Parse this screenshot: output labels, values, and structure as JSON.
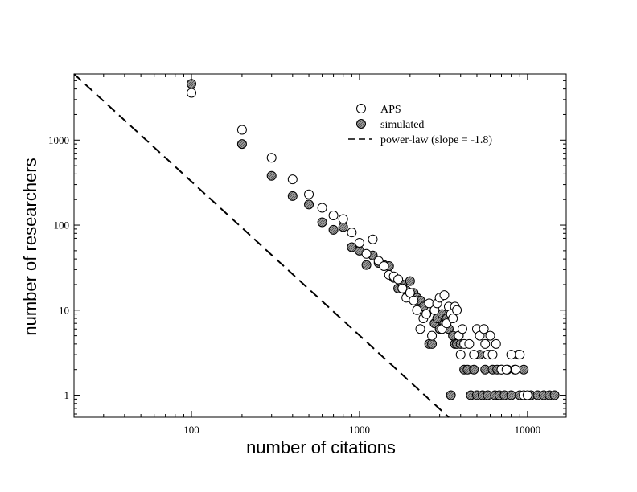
{
  "chart_data": {
    "type": "scatter",
    "xlabel": "number of citations",
    "ylabel": "number of researchers",
    "xscale": "log",
    "yscale": "log",
    "xlim": [
      20,
      17000
    ],
    "ylim": [
      0.55,
      6000
    ],
    "xticks": [
      100,
      1000,
      10000
    ],
    "xtick_labels": [
      "100",
      "1000",
      "10000"
    ],
    "yticks": [
      1,
      10,
      100,
      1000
    ],
    "ytick_labels": [
      "1",
      "10",
      "100",
      "1000"
    ],
    "legend_position": "top-right",
    "grid": false,
    "series": [
      {
        "name": "APS",
        "marker": "open-circle",
        "points": [
          [
            100,
            3600
          ],
          [
            200,
            1320
          ],
          [
            300,
            620
          ],
          [
            400,
            345
          ],
          [
            500,
            230
          ],
          [
            600,
            160
          ],
          [
            700,
            130
          ],
          [
            800,
            118
          ],
          [
            900,
            82
          ],
          [
            1000,
            62
          ],
          [
            1100,
            46
          ],
          [
            1200,
            68
          ],
          [
            1300,
            38
          ],
          [
            1400,
            33
          ],
          [
            1500,
            26
          ],
          [
            1600,
            25
          ],
          [
            1700,
            23
          ],
          [
            1800,
            18
          ],
          [
            1900,
            14
          ],
          [
            2000,
            16
          ],
          [
            2100,
            13
          ],
          [
            2200,
            10
          ],
          [
            2300,
            6
          ],
          [
            2400,
            8
          ],
          [
            2500,
            9
          ],
          [
            2600,
            12
          ],
          [
            2700,
            5
          ],
          [
            2800,
            10
          ],
          [
            2900,
            12
          ],
          [
            3000,
            14
          ],
          [
            3100,
            6
          ],
          [
            3200,
            15
          ],
          [
            3300,
            7
          ],
          [
            3400,
            11
          ],
          [
            3500,
            9
          ],
          [
            3600,
            8
          ],
          [
            3700,
            11
          ],
          [
            3800,
            10
          ],
          [
            3900,
            5
          ],
          [
            4000,
            3
          ],
          [
            4100,
            6
          ],
          [
            4200,
            4
          ],
          [
            4500,
            4
          ],
          [
            4800,
            3
          ],
          [
            5000,
            6
          ],
          [
            5200,
            5
          ],
          [
            5500,
            6
          ],
          [
            5600,
            4
          ],
          [
            5800,
            3
          ],
          [
            6000,
            5
          ],
          [
            6200,
            3
          ],
          [
            6500,
            4
          ],
          [
            7000,
            2
          ],
          [
            7500,
            2
          ],
          [
            8000,
            3
          ],
          [
            8500,
            2
          ],
          [
            9000,
            3
          ],
          [
            9500,
            1
          ],
          [
            10000,
            1
          ]
        ]
      },
      {
        "name": "simulated",
        "marker": "filled-circle",
        "points": [
          [
            100,
            4600
          ],
          [
            200,
            900
          ],
          [
            300,
            380
          ],
          [
            400,
            220
          ],
          [
            500,
            175
          ],
          [
            600,
            108
          ],
          [
            700,
            88
          ],
          [
            800,
            95
          ],
          [
            900,
            55
          ],
          [
            1000,
            50
          ],
          [
            1100,
            34
          ],
          [
            1200,
            44
          ],
          [
            1300,
            36
          ],
          [
            1400,
            34
          ],
          [
            1500,
            33
          ],
          [
            1600,
            24
          ],
          [
            1700,
            18
          ],
          [
            1800,
            20
          ],
          [
            1900,
            17
          ],
          [
            2000,
            22
          ],
          [
            2100,
            16
          ],
          [
            2200,
            14
          ],
          [
            2300,
            13
          ],
          [
            2400,
            11
          ],
          [
            2500,
            9
          ],
          [
            2600,
            4
          ],
          [
            2700,
            4
          ],
          [
            2800,
            7
          ],
          [
            2900,
            8
          ],
          [
            3000,
            6
          ],
          [
            3100,
            9
          ],
          [
            3200,
            7
          ],
          [
            3300,
            8
          ],
          [
            3400,
            6
          ],
          [
            3500,
            1
          ],
          [
            3600,
            5
          ],
          [
            3700,
            4
          ],
          [
            3800,
            4
          ],
          [
            3900,
            5
          ],
          [
            4000,
            4
          ],
          [
            4200,
            2
          ],
          [
            4400,
            2
          ],
          [
            4600,
            1
          ],
          [
            4800,
            2
          ],
          [
            5000,
            1
          ],
          [
            5200,
            3
          ],
          [
            5400,
            1
          ],
          [
            5600,
            2
          ],
          [
            5800,
            1
          ],
          [
            6000,
            3
          ],
          [
            6200,
            2
          ],
          [
            6400,
            1
          ],
          [
            6600,
            2
          ],
          [
            6800,
            1
          ],
          [
            7000,
            2
          ],
          [
            7300,
            1
          ],
          [
            7600,
            2
          ],
          [
            8000,
            1
          ],
          [
            8400,
            2
          ],
          [
            8800,
            3
          ],
          [
            9000,
            1
          ],
          [
            9500,
            2
          ],
          [
            10500,
            1
          ],
          [
            11500,
            1
          ],
          [
            12500,
            1
          ],
          [
            13500,
            1
          ],
          [
            14500,
            1
          ]
        ]
      },
      {
        "name": "power-law (slope = -1.8)",
        "marker": "dashed-line",
        "slope": -1.8,
        "line": [
          [
            20,
            6000
          ],
          [
            3400,
            0.55
          ]
        ]
      }
    ]
  }
}
